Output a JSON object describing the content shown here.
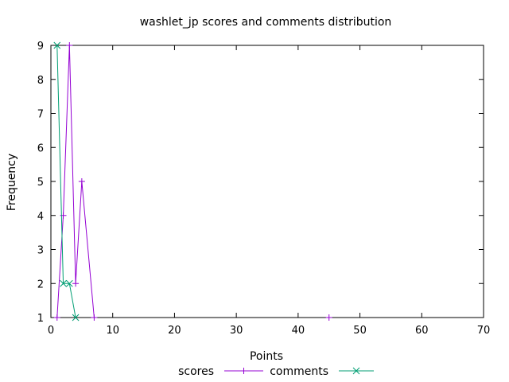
{
  "chart_data": {
    "type": "line",
    "title": "washlet_jp scores and comments distribution",
    "xlabel": "Points",
    "ylabel": "Frequency",
    "xlim": [
      0,
      70
    ],
    "ylim": [
      1,
      9
    ],
    "x_ticks": [
      0,
      10,
      20,
      30,
      40,
      50,
      60,
      70
    ],
    "y_ticks": [
      1,
      2,
      3,
      4,
      5,
      6,
      7,
      8,
      9
    ],
    "grid": false,
    "legend_position": "bottom",
    "series": [
      {
        "name": "scores",
        "color": "#9400d3",
        "marker": "plus",
        "points": [
          [
            1,
            1
          ],
          [
            2,
            4
          ],
          [
            3,
            9
          ],
          [
            4,
            2
          ],
          [
            5,
            5
          ],
          [
            7,
            1
          ]
        ],
        "isolated_points": [
          [
            45,
            1
          ]
        ]
      },
      {
        "name": "comments",
        "color": "#009e73",
        "marker": "cross",
        "points": [
          [
            1,
            9
          ],
          [
            2,
            2
          ],
          [
            3,
            2
          ],
          [
            4,
            1
          ]
        ],
        "isolated_points": []
      }
    ]
  }
}
